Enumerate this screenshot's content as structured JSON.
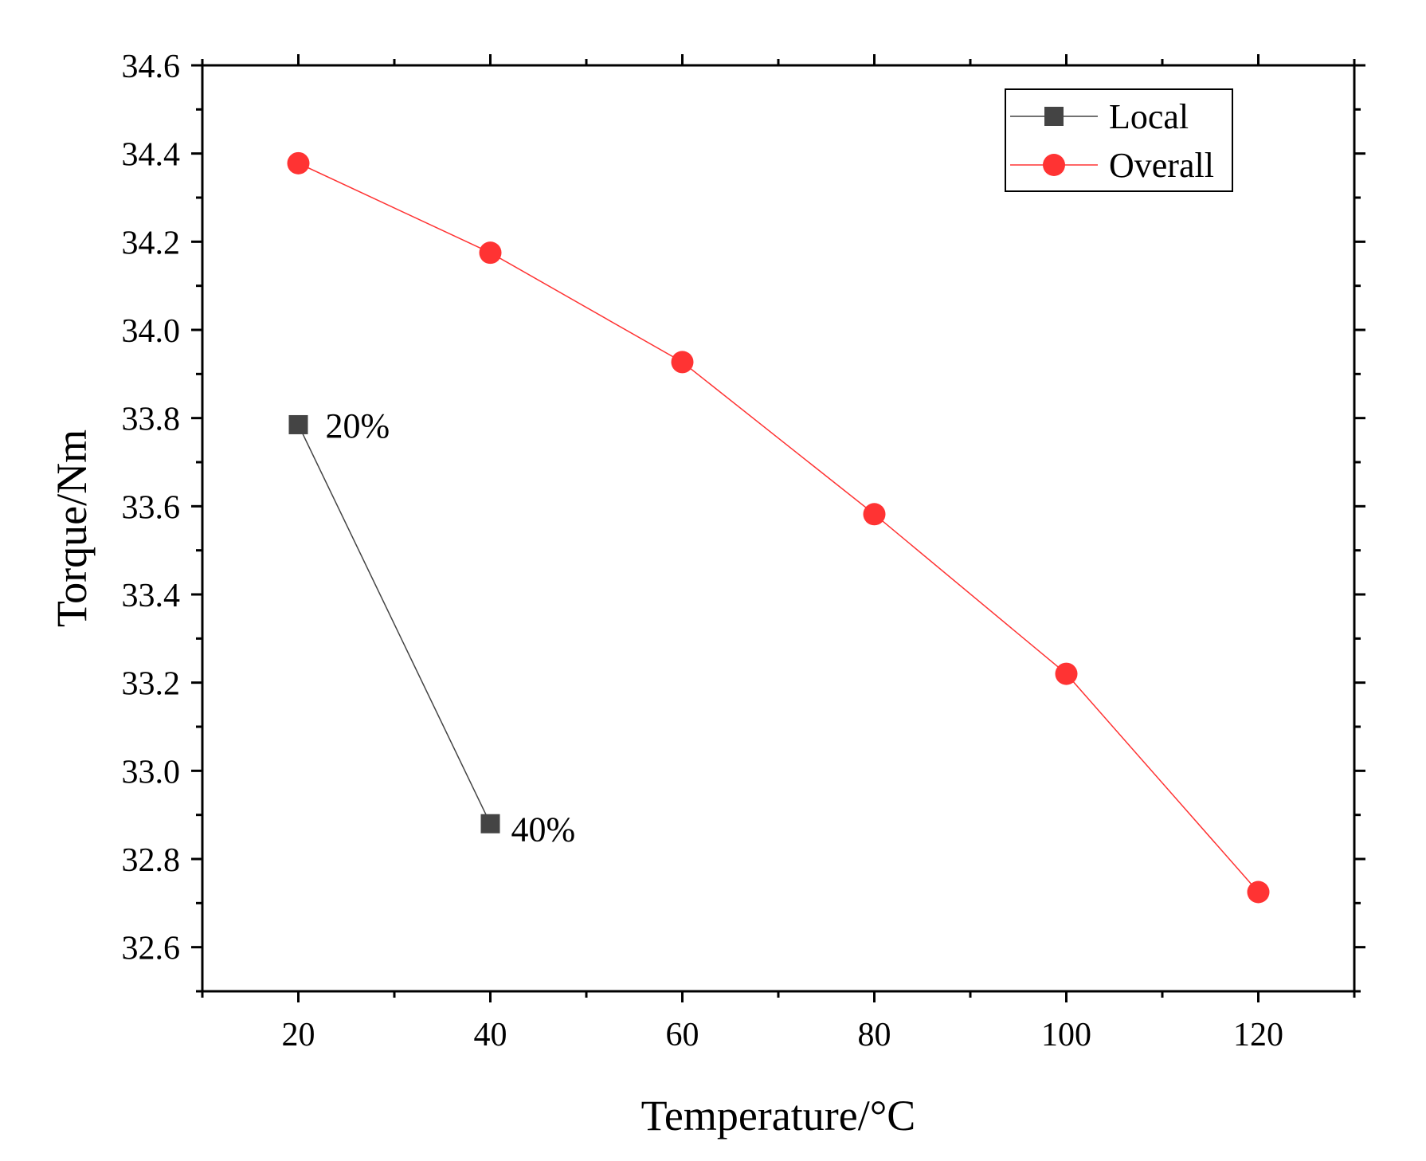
{
  "chart_data": {
    "type": "line",
    "title": "",
    "xlabel": "Temperature/°C",
    "ylabel": "Torque/Nm",
    "xlim": [
      10,
      130
    ],
    "ylim": [
      32.5,
      34.6
    ],
    "x_ticks": [
      20,
      40,
      60,
      80,
      100,
      120
    ],
    "y_ticks": [
      "32.6",
      "32.8",
      "33.0",
      "33.2",
      "33.4",
      "33.6",
      "33.8",
      "34.0",
      "34.2",
      "34.4",
      "34.6"
    ],
    "grid": false,
    "legend_position": "top-right",
    "series": [
      {
        "name": "Local",
        "color": "#444444",
        "marker": "square",
        "x": [
          20,
          40
        ],
        "y": [
          33.785,
          32.88
        ],
        "point_labels": [
          "20%",
          "40%"
        ]
      },
      {
        "name": "Overall",
        "color": "#ff3333",
        "marker": "circle",
        "x": [
          20,
          40,
          60,
          80,
          100,
          120
        ],
        "y": [
          34.378,
          34.175,
          33.927,
          33.582,
          33.22,
          32.725
        ]
      }
    ]
  }
}
